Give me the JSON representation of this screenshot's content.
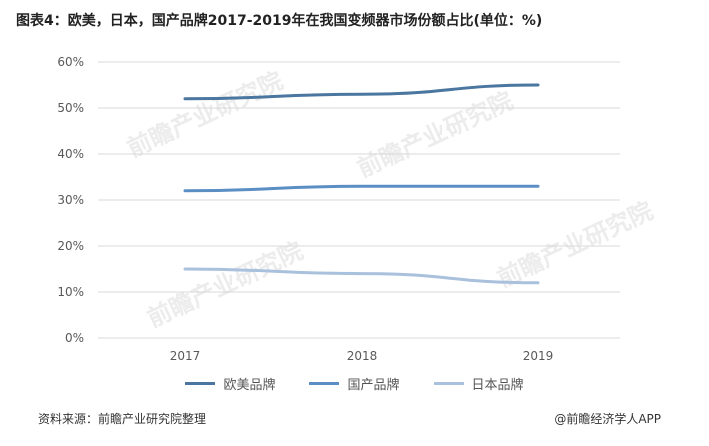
{
  "title": "图表4：欧美，日本，国产品牌2017-2019年在我国变频器市场份额占比(单位：%)",
  "footer": {
    "source": "资料来源：前瞻产业研究院整理",
    "brand": "@前瞻经济学人APP"
  },
  "watermark": "前瞻产业研究院",
  "chart_data": {
    "type": "line",
    "x": [
      "2017",
      "2018",
      "2019"
    ],
    "y_ticks": [
      "0%",
      "10%",
      "20%",
      "30%",
      "40%",
      "50%",
      "60%"
    ],
    "ylim": [
      0,
      60
    ],
    "grid": true,
    "legend_position": "bottom",
    "series": [
      {
        "name": "欧美品牌",
        "values": [
          52,
          53,
          55
        ],
        "color": "#4a76a0"
      },
      {
        "name": "国产品牌",
        "values": [
          32,
          33,
          33
        ],
        "color": "#5b8fc4"
      },
      {
        "name": "日本品牌",
        "values": [
          15,
          14,
          12
        ],
        "color": "#a9c1dc"
      }
    ]
  }
}
